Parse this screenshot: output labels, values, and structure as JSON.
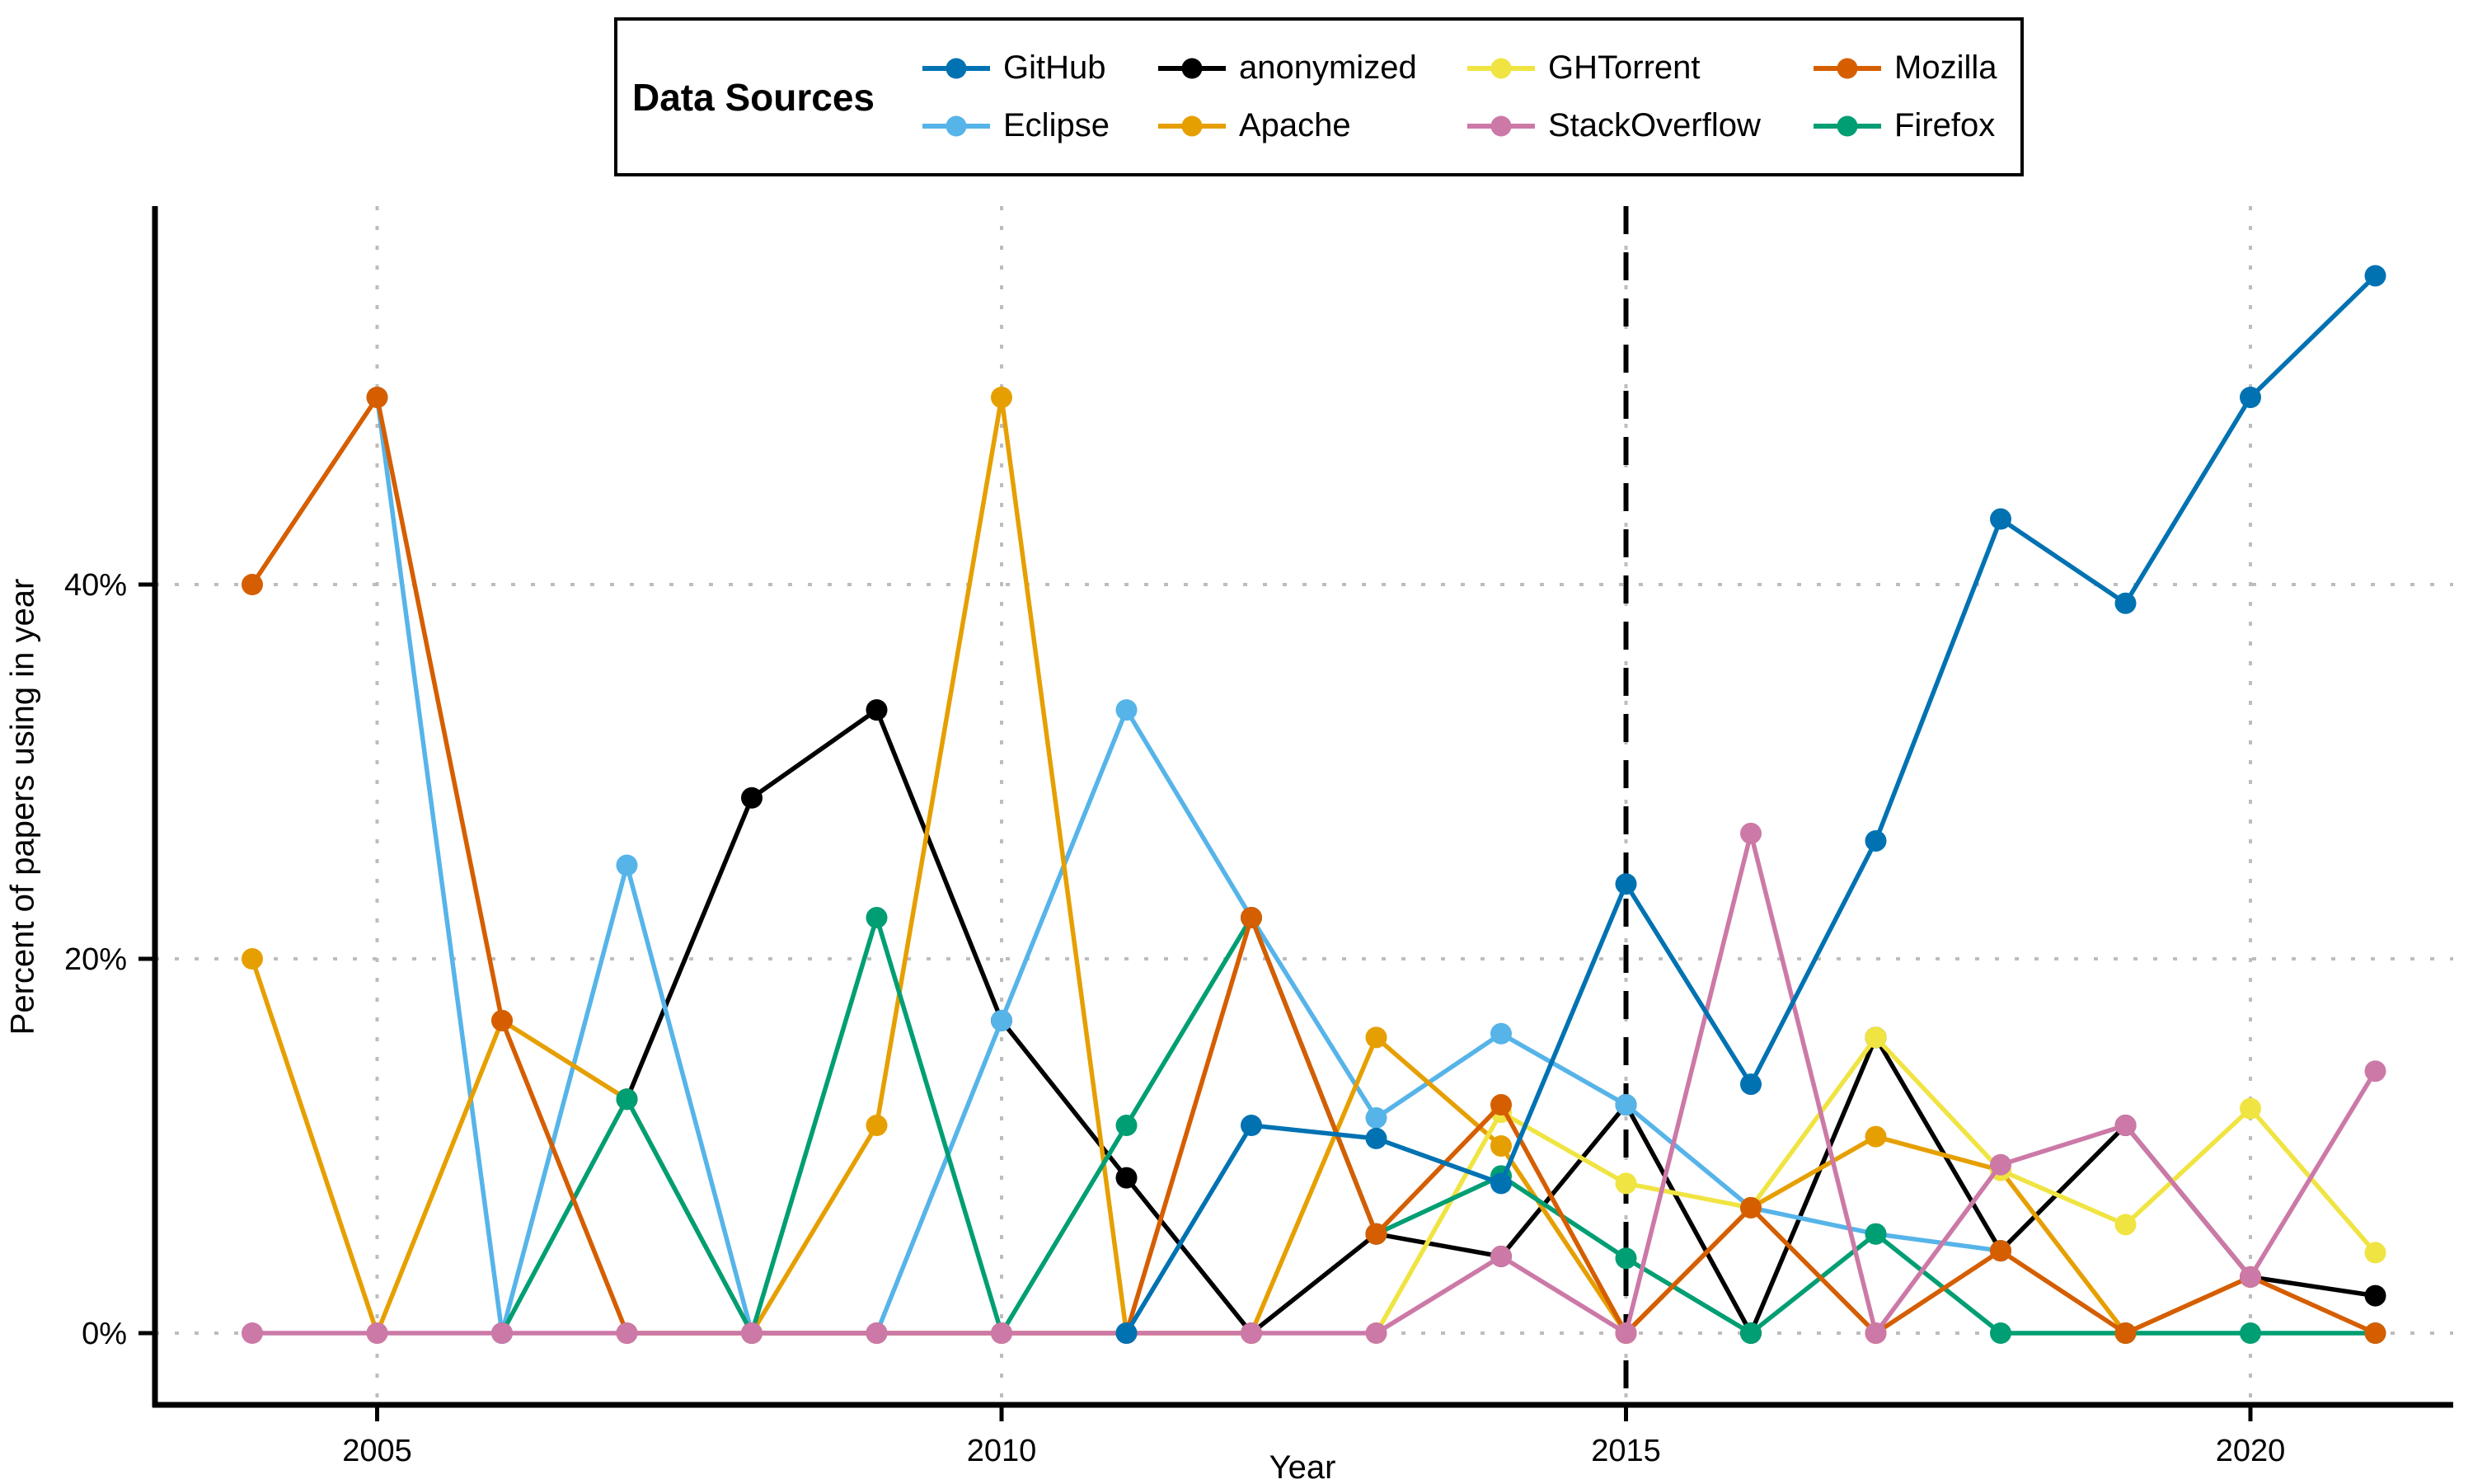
{
  "chart_data": {
    "type": "line",
    "legend_title": "Data Sources",
    "xlabel": "Year",
    "ylabel": "Percent of papers using in year",
    "x_ticks": [
      2005,
      2010,
      2015,
      2020
    ],
    "y_ticks": [
      {
        "value": 0,
        "label": "0%"
      },
      {
        "value": 20,
        "label": "20%"
      },
      {
        "value": 40,
        "label": "40%"
      }
    ],
    "xlim": [
      2003.2,
      2021.7
    ],
    "ylim": [
      -3.8,
      60.3
    ],
    "grid": "dotted",
    "vline": {
      "x": 2015,
      "style": "dashed",
      "color": "#000000"
    },
    "legend_position": "top",
    "legend_order": [
      "GitHub",
      "anonymized",
      "GHTorrent",
      "Mozilla",
      "Eclipse",
      "Apache",
      "StackOverflow",
      "Firefox"
    ],
    "draw_order": [
      "anonymized",
      "Eclipse",
      "Apache",
      "GHTorrent",
      "Firefox",
      "Mozilla",
      "StackOverflow",
      "GitHub"
    ],
    "series": [
      {
        "name": "GitHub",
        "color": "#0072B2",
        "points": [
          [
            2011,
            0
          ],
          [
            2012,
            11.1
          ],
          [
            2013,
            10.4
          ],
          [
            2014,
            8
          ],
          [
            2015,
            24
          ],
          [
            2016,
            13.3
          ],
          [
            2017,
            26.3
          ],
          [
            2018,
            43.5
          ],
          [
            2019,
            39
          ],
          [
            2020,
            50
          ],
          [
            2021,
            56.5
          ]
        ]
      },
      {
        "name": "anonymized",
        "color": "#000000",
        "points": [
          [
            2007,
            12.5
          ],
          [
            2008,
            28.6
          ],
          [
            2009,
            33.3
          ],
          [
            2010,
            16.7
          ],
          [
            2011,
            8.3
          ],
          [
            2012,
            0
          ],
          [
            2013,
            5.3
          ],
          [
            2014,
            4.1
          ],
          [
            2015,
            12.2
          ],
          [
            2016,
            0
          ],
          [
            2017,
            15.8
          ],
          [
            2018,
            4.4
          ],
          [
            2019,
            11.1
          ],
          [
            2020,
            3
          ],
          [
            2021,
            2
          ]
        ]
      },
      {
        "name": "GHTorrent",
        "color": "#F0E442",
        "points": [
          [
            2013,
            0
          ],
          [
            2014,
            11.8
          ],
          [
            2015,
            8
          ],
          [
            2016,
            6.7
          ],
          [
            2017,
            15.8
          ],
          [
            2018,
            8.7
          ],
          [
            2019,
            5.8
          ],
          [
            2020,
            12
          ],
          [
            2021,
            4.3
          ]
        ]
      },
      {
        "name": "Mozilla",
        "color": "#D55E00",
        "points": [
          [
            2004,
            40
          ],
          [
            2005,
            50
          ],
          [
            2006,
            16.7
          ],
          [
            2007,
            0
          ],
          [
            2008,
            0
          ],
          [
            2009,
            0
          ],
          [
            2010,
            0
          ],
          [
            2011,
            0
          ],
          [
            2012,
            22.2
          ],
          [
            2013,
            5.3
          ],
          [
            2014,
            12.2
          ],
          [
            2015,
            0
          ],
          [
            2016,
            6.7
          ],
          [
            2017,
            0
          ],
          [
            2018,
            4.4
          ],
          [
            2019,
            0
          ],
          [
            2020,
            3
          ],
          [
            2021,
            0
          ]
        ]
      },
      {
        "name": "Eclipse",
        "color": "#56B4E9",
        "points": [
          [
            2005,
            50
          ],
          [
            2006,
            0
          ],
          [
            2007,
            25
          ],
          [
            2008,
            0
          ],
          [
            2009,
            0
          ],
          [
            2010,
            16.7
          ],
          [
            2011,
            33.3
          ],
          [
            2012,
            22.2
          ],
          [
            2013,
            11.5
          ],
          [
            2014,
            16
          ],
          [
            2015,
            12.2
          ],
          [
            2016,
            6.7
          ],
          [
            2017,
            5.3
          ],
          [
            2018,
            4.4
          ]
        ]
      },
      {
        "name": "Apache",
        "color": "#E69F00",
        "points": [
          [
            2004,
            20
          ],
          [
            2005,
            0
          ],
          [
            2006,
            16.7
          ],
          [
            2007,
            12.5
          ],
          [
            2008,
            0
          ],
          [
            2009,
            11.1
          ],
          [
            2010,
            50
          ],
          [
            2011,
            0
          ],
          [
            2012,
            0
          ],
          [
            2013,
            15.8
          ],
          [
            2014,
            10
          ],
          [
            2015,
            0
          ],
          [
            2016,
            6.7
          ],
          [
            2017,
            10.5
          ],
          [
            2018,
            8.7
          ],
          [
            2019,
            0
          ],
          [
            2020,
            3
          ]
        ]
      },
      {
        "name": "StackOverflow",
        "color": "#CC79A7",
        "points": [
          [
            2004,
            0
          ],
          [
            2005,
            0
          ],
          [
            2006,
            0
          ],
          [
            2007,
            0
          ],
          [
            2008,
            0
          ],
          [
            2009,
            0
          ],
          [
            2010,
            0
          ],
          [
            2011,
            0
          ],
          [
            2012,
            0
          ],
          [
            2013,
            0
          ],
          [
            2014,
            4.1
          ],
          [
            2015,
            0
          ],
          [
            2016,
            26.7
          ],
          [
            2017,
            0
          ],
          [
            2018,
            9
          ],
          [
            2019,
            11.1
          ],
          [
            2020,
            3
          ],
          [
            2021,
            14
          ]
        ]
      },
      {
        "name": "Firefox",
        "color": "#009E73",
        "points": [
          [
            2006,
            0
          ],
          [
            2007,
            12.5
          ],
          [
            2008,
            0
          ],
          [
            2009,
            22.2
          ],
          [
            2010,
            0
          ],
          [
            2011,
            11.1
          ],
          [
            2012,
            22.2
          ],
          [
            2013,
            5.3
          ],
          [
            2014,
            8.4
          ],
          [
            2015,
            4
          ],
          [
            2016,
            0
          ],
          [
            2017,
            5.3
          ],
          [
            2018,
            0
          ],
          [
            2019,
            0
          ],
          [
            2020,
            0
          ],
          [
            2021,
            0
          ]
        ]
      }
    ],
    "styles": {
      "grid_color": "#bdbdbd",
      "axis_color": "#000000",
      "background": "#ffffff",
      "line_width": 5.5,
      "point_radius": 13
    }
  }
}
